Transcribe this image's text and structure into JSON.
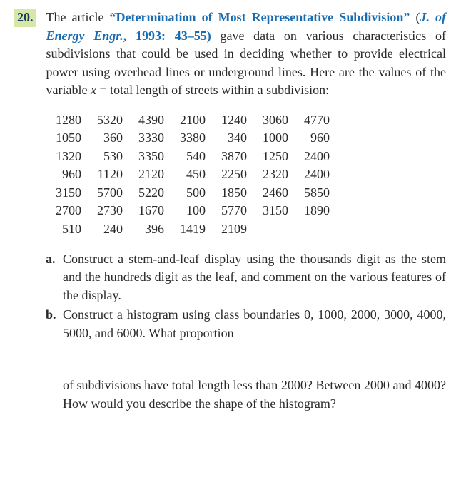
{
  "question_number": "20.",
  "intro": {
    "pre": "The article ",
    "title_open": "“Determination of Most Representative Subdivision”",
    "journal_open": " (",
    "journal": "J. of Energy Engr.",
    "issue": ", 1993: 43–55)",
    "post": " gave data on various characteristics of subdivisions that could be used in deciding whether to provide electrical power using overhead lines or underground lines. Here are the values of the variable ",
    "var": "x",
    "post2": " = total length of streets within a subdivision:"
  },
  "data_rows": [
    [
      "1280",
      "5320",
      "4390",
      "2100",
      "1240",
      "3060",
      "4770"
    ],
    [
      "1050",
      "360",
      "3330",
      "3380",
      "340",
      "1000",
      "960"
    ],
    [
      "1320",
      "530",
      "3350",
      "540",
      "3870",
      "1250",
      "2400"
    ],
    [
      "960",
      "1120",
      "2120",
      "450",
      "2250",
      "2320",
      "2400"
    ],
    [
      "3150",
      "5700",
      "5220",
      "500",
      "1850",
      "2460",
      "5850"
    ],
    [
      "2700",
      "2730",
      "1670",
      "100",
      "5770",
      "3150",
      "1890"
    ],
    [
      "510",
      "240",
      "396",
      "1419",
      "2109",
      "",
      ""
    ]
  ],
  "parts": {
    "a": {
      "label": "a.",
      "text": "Construct a stem-and-leaf display using the thousands digit as the stem and the hundreds digit as the leaf, and comment on the various features of the display."
    },
    "b": {
      "label": "b.",
      "text": "Construct a histogram using class boundaries 0, 1000, 2000, 3000, 4000, 5000, and 6000. What proportion"
    },
    "b_cont": "of subdivisions have total length less than 2000? Between 2000 and 4000? How would you describe the shape of the histogram?"
  },
  "colors": {
    "highlight_bg": "#d6e8a8",
    "link_blue": "#1a6bb0",
    "text": "#2a2a2a"
  }
}
